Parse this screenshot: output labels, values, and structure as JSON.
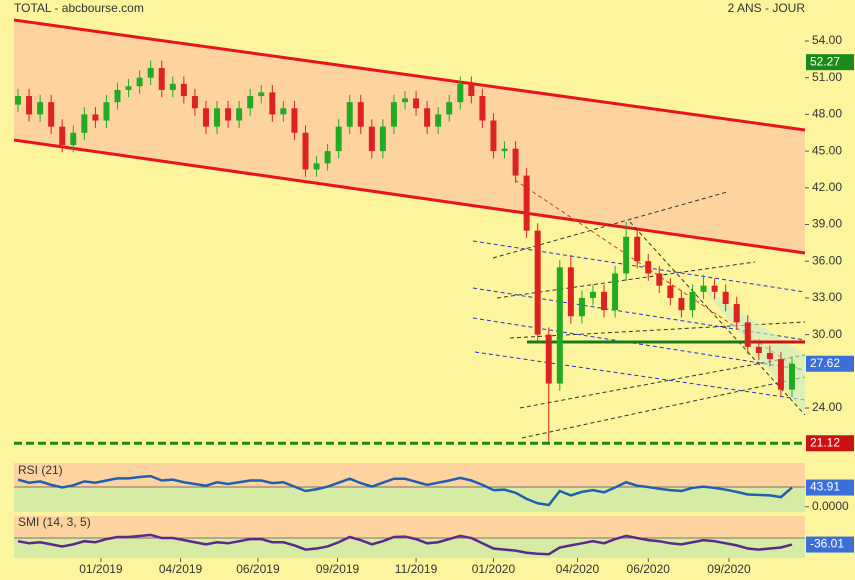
{
  "header": {
    "title": "TOTAL - abcbourse.com",
    "period": "2 ANS - JOUR"
  },
  "chart_data": [
    {
      "type": "candlestick",
      "up_color": "#22aa22",
      "down_color": "#dd2222",
      "last_color": "#3b6fd8",
      "xlim": [
        0,
        70
      ],
      "xticks": [
        {
          "value": 7.5,
          "label": "01/2019"
        },
        {
          "value": 14.7,
          "label": "04/2019"
        },
        {
          "value": 21.7,
          "label": "06/2019"
        },
        {
          "value": 28.9,
          "label": "09/2019"
        },
        {
          "value": 36,
          "label": "11/2019"
        },
        {
          "value": 43,
          "label": "01/2020"
        },
        {
          "value": 50.6,
          "label": "04/2020"
        },
        {
          "value": 57,
          "label": "06/2020"
        },
        {
          "value": 64.3,
          "label": "09/2020"
        }
      ],
      "ylim": [
        20.16,
        55.88
      ],
      "yticks": [
        {
          "value": 54,
          "label": "54.00"
        },
        {
          "value": 51,
          "label": "51.00"
        },
        {
          "value": 48,
          "label": "48.00"
        },
        {
          "value": 45,
          "label": "45.00"
        },
        {
          "value": 42,
          "label": "42.00"
        },
        {
          "value": 39,
          "label": "39.00"
        },
        {
          "value": 36,
          "label": "36.00"
        },
        {
          "value": 33,
          "label": "33.00"
        },
        {
          "value": 30,
          "label": "30.00"
        },
        {
          "value": 24,
          "label": "24.00"
        }
      ],
      "levels": [
        {
          "value": 52.27,
          "color": "#1a8a1a",
          "line": false
        },
        {
          "value": 21.12,
          "color": "#cc1111",
          "line": true
        }
      ],
      "open": [
        48.8,
        49.5,
        48,
        49,
        47,
        45.5,
        46.5,
        48,
        47.5,
        49,
        50,
        50.3,
        51,
        51.8,
        50,
        50.5,
        49.5,
        48.5,
        47,
        48.5,
        47.5,
        48.5,
        49.5,
        49.8,
        48,
        48.5,
        46.5,
        43.5,
        44,
        45,
        47,
        49,
        47,
        45,
        47,
        49,
        49.3,
        48.5,
        47,
        48,
        49,
        50.5,
        49.5,
        47.5,
        45,
        45.2,
        43,
        38.5,
        30,
        26,
        35.5,
        31.5,
        33,
        33.5,
        32,
        35,
        38,
        36,
        35,
        34,
        33,
        32,
        33.5,
        34,
        33.5,
        32.5,
        31,
        29,
        28.5,
        28,
        25.5
      ],
      "high": [
        50.1,
        50.1,
        49.6,
        49.6,
        47.6,
        47.1,
        48.6,
        48.6,
        49.6,
        50.6,
        50.9,
        51.6,
        52.4,
        52.4,
        51.1,
        51.1,
        50.1,
        49.1,
        49.1,
        49.1,
        49.1,
        50.1,
        50.4,
        50.4,
        49.1,
        49.1,
        47.1,
        44.6,
        45.6,
        47.6,
        49.6,
        49.6,
        47.6,
        47.6,
        49.6,
        49.9,
        49.9,
        49.1,
        48.6,
        49.6,
        51.1,
        51.1,
        50.1,
        48.1,
        45.8,
        45.8,
        43.6,
        39.1,
        30.6,
        36.1,
        36.5,
        33.6,
        34.1,
        34.1,
        35.6,
        39.2,
        38.6,
        36.6,
        35.6,
        34.6,
        33.6,
        34.1,
        34.9,
        34.6,
        34.1,
        33.1,
        31.6,
        29.6,
        29.1,
        28.6,
        28.2
      ],
      "low": [
        48.2,
        47.4,
        47.4,
        46.4,
        44.9,
        44.9,
        45.9,
        46.9,
        46.9,
        48.4,
        49.4,
        49.7,
        50.4,
        49.4,
        49.4,
        48.9,
        47.9,
        46.4,
        46.4,
        46.9,
        46.9,
        47.9,
        48.9,
        47.4,
        47.4,
        45.9,
        42.9,
        42.9,
        43.4,
        44.4,
        46.4,
        46.4,
        44.4,
        44.4,
        46.4,
        48.4,
        47.9,
        46.4,
        46.4,
        47.4,
        48.4,
        48.9,
        46.9,
        44.4,
        44.4,
        42.4,
        37.9,
        29.4,
        21.12,
        25.4,
        30.9,
        30.9,
        32.4,
        31.4,
        31.4,
        34.4,
        35.4,
        34.4,
        33.4,
        32.4,
        31.4,
        31.4,
        32.9,
        32.9,
        31.9,
        30.4,
        28.4,
        27.9,
        27.4,
        24.9,
        24.9
      ],
      "close": [
        49.5,
        48,
        49,
        47,
        45.5,
        46.5,
        48,
        47.5,
        49,
        50,
        50.3,
        51,
        51.8,
        50,
        50.5,
        49.5,
        48.5,
        47,
        48.5,
        47.5,
        48.5,
        49.5,
        49.8,
        48,
        48.5,
        46.5,
        43.5,
        44,
        45,
        47,
        49,
        47,
        45,
        47,
        49,
        49.3,
        48.5,
        47,
        48,
        49,
        50.5,
        49.5,
        47.5,
        45,
        45.2,
        43,
        38.5,
        30,
        26,
        35.5,
        31.5,
        33,
        33.5,
        32,
        35,
        38,
        36,
        35,
        34,
        33,
        32,
        33.5,
        34,
        33.5,
        32.5,
        31,
        29,
        28.5,
        28,
        25.5,
        27.62
      ]
    },
    {
      "type": "line",
      "title": "RSI (21)",
      "color": "#1f5fb0",
      "last_color": "#3b6fd8",
      "ylim": [
        -12,
        100
      ],
      "yticks": [
        {
          "value": 0,
          "label": "0.0000"
        }
      ],
      "values": [
        62,
        55,
        58,
        50,
        44,
        49,
        58,
        55,
        60,
        65,
        65,
        68,
        70,
        60,
        62,
        56,
        52,
        48,
        56,
        52,
        56,
        60,
        60,
        54,
        56,
        46,
        36,
        40,
        46,
        55,
        64,
        54,
        46,
        55,
        64,
        64,
        57,
        50,
        55,
        60,
        66,
        60,
        50,
        38,
        39,
        32,
        18,
        8,
        4,
        36,
        26,
        34,
        38,
        33,
        44,
        56,
        48,
        45,
        41,
        38,
        36,
        43,
        46,
        43,
        39,
        34,
        28,
        27,
        26,
        22,
        43.91
      ]
    },
    {
      "type": "line",
      "title": "SMI (14, 3, 5)",
      "color": "#5a2a8a",
      "last_color": "#3b6fd8",
      "ylim": [
        -100,
        100
      ],
      "values": [
        -20,
        -30,
        -25,
        -35,
        -45,
        -35,
        -20,
        -25,
        -10,
        0,
        0,
        5,
        10,
        -5,
        -5,
        -15,
        -25,
        -35,
        -25,
        -30,
        -20,
        -10,
        -10,
        -25,
        -25,
        -40,
        -60,
        -55,
        -45,
        -25,
        0,
        -15,
        -35,
        -20,
        0,
        2,
        -10,
        -30,
        -25,
        -10,
        5,
        -5,
        -30,
        -55,
        -60,
        -65,
        -75,
        -80,
        -82,
        -50,
        -40,
        -30,
        -20,
        -30,
        -10,
        5,
        -5,
        -15,
        -20,
        -30,
        -35,
        -25,
        -15,
        -20,
        -30,
        -40,
        -55,
        -60,
        -55,
        -50,
        -36.01
      ]
    }
  ]
}
